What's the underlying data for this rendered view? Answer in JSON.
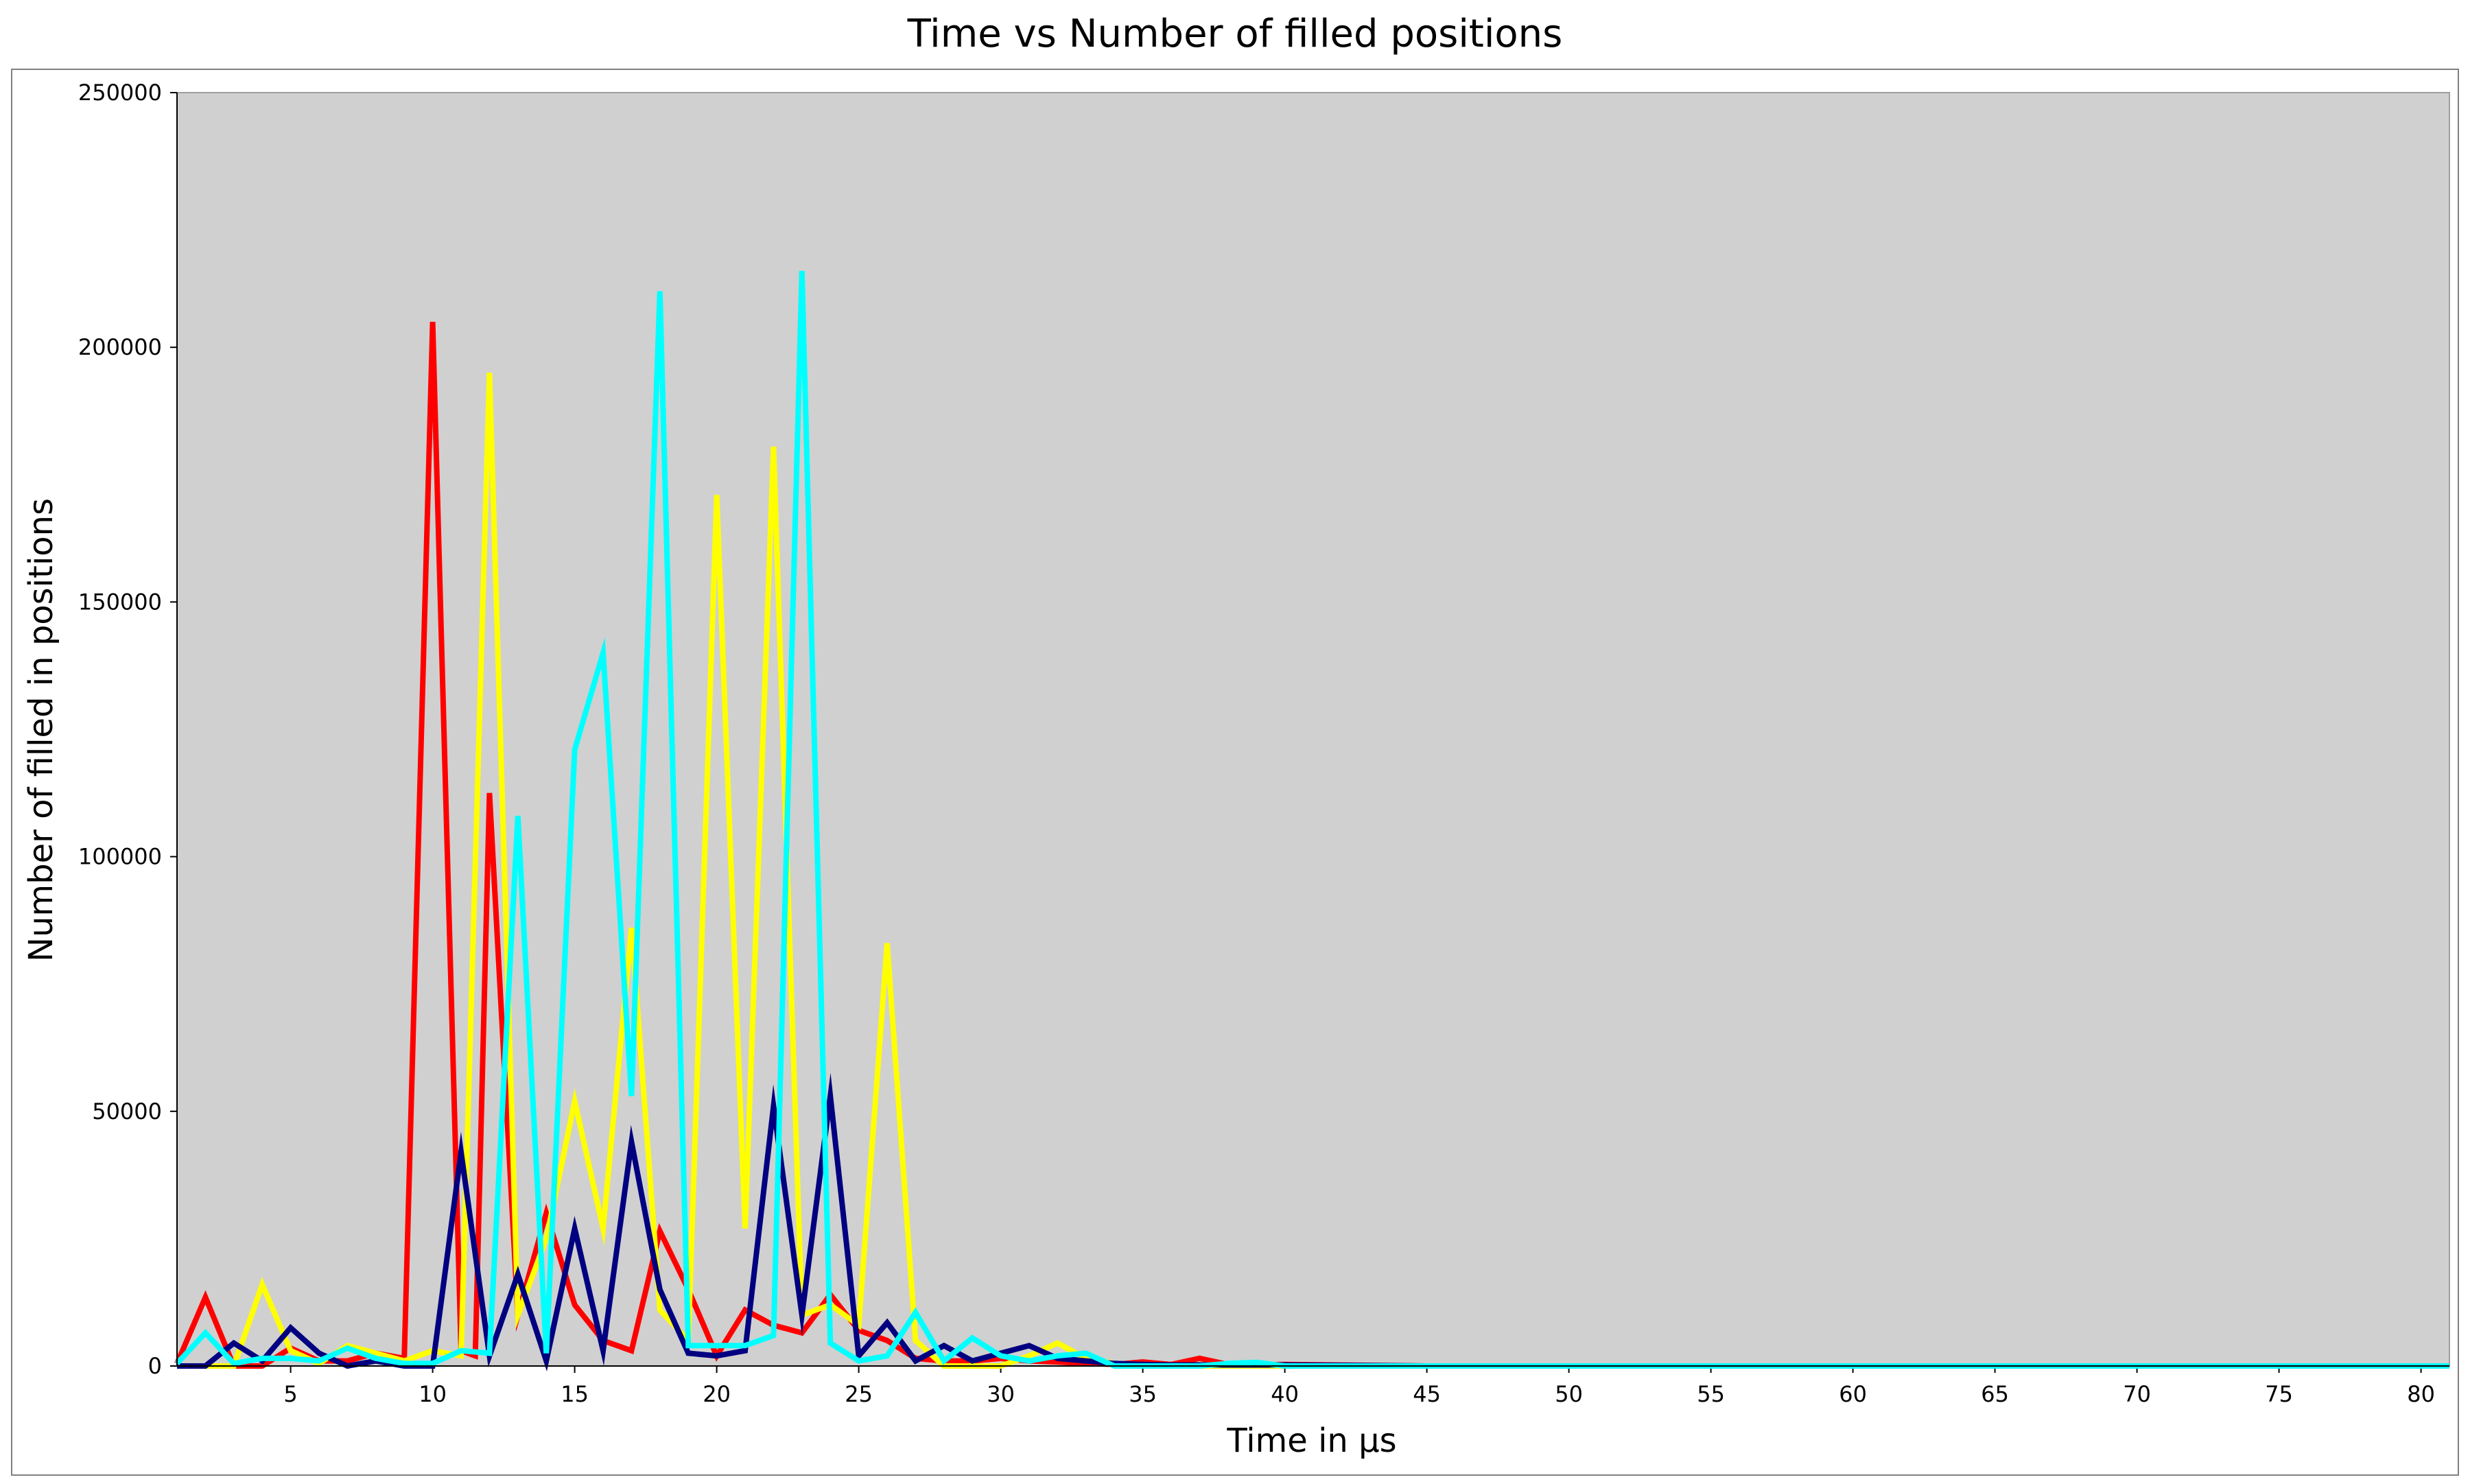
{
  "chart_data": {
    "type": "line",
    "title": "Time vs Number of filled positions",
    "xlabel": "Time in µs",
    "ylabel": "Number of filled in positions",
    "xlim": [
      1,
      81
    ],
    "ylim": [
      0,
      250000
    ],
    "x_ticks": [
      5,
      10,
      15,
      20,
      25,
      30,
      35,
      40,
      45,
      50,
      55,
      60,
      65,
      70,
      75,
      80
    ],
    "y_ticks": [
      0,
      50000,
      100000,
      150000,
      200000,
      250000
    ],
    "background_color": "#d0d0d0",
    "grid": false,
    "legend": "none",
    "series": [
      {
        "color": "#ff0000",
        "x": [
          1,
          2,
          3,
          4,
          5,
          6,
          7,
          8,
          9,
          10,
          11,
          11.5,
          12,
          13,
          14,
          15,
          16,
          17,
          18,
          19,
          20,
          21,
          22,
          23,
          24,
          25,
          26,
          27,
          28,
          29,
          30,
          31,
          32,
          33,
          34,
          35,
          36,
          37,
          38,
          39,
          40,
          45,
          50,
          55,
          60,
          65,
          70,
          75,
          80,
          81
        ],
        "y": [
          500,
          13500,
          0,
          0,
          3500,
          1000,
          1000,
          2500,
          1500,
          205000,
          3000,
          2000,
          112500,
          10000,
          30000,
          12000,
          5000,
          3000,
          26500,
          15000,
          2000,
          11000,
          8000,
          6500,
          14000,
          7000,
          5000,
          1500,
          1000,
          1000,
          1500,
          1000,
          800,
          500,
          300,
          800,
          300,
          1500,
          300,
          200,
          300,
          0,
          0,
          0,
          0,
          0,
          0,
          0,
          0,
          0
        ]
      },
      {
        "color": "#ffff00",
        "x": [
          1,
          2,
          3,
          4,
          5,
          6,
          7,
          8,
          9,
          10,
          11,
          12,
          13,
          14,
          15,
          16,
          17,
          18,
          19,
          20,
          21,
          22,
          23,
          24,
          25,
          26,
          27,
          28,
          29,
          30,
          31,
          32,
          33,
          34,
          35,
          36,
          37,
          38,
          39,
          40,
          45,
          50,
          55,
          60,
          65,
          70,
          75,
          80,
          81
        ],
        "y": [
          0,
          0,
          0,
          16000,
          3000,
          500,
          4000,
          2500,
          1000,
          3000,
          2000,
          195000,
          10000,
          25000,
          52000,
          27000,
          86000,
          11000,
          5000,
          171000,
          27000,
          180500,
          10000,
          12000,
          8000,
          83000,
          5000,
          0,
          0,
          0,
          2000,
          4500,
          1500,
          500,
          0,
          0,
          0,
          0,
          0,
          0,
          0,
          0,
          0,
          0,
          0,
          0,
          0,
          0,
          0
        ]
      },
      {
        "color": "#000080",
        "x": [
          1,
          2,
          3,
          4,
          5,
          6,
          7,
          8,
          9,
          10,
          11,
          12,
          13,
          14,
          15,
          16,
          17,
          18,
          19,
          20,
          21,
          22,
          23,
          24,
          25,
          26,
          27,
          28,
          29,
          30,
          31,
          32,
          33,
          34,
          35,
          36,
          37,
          38,
          39,
          40,
          45,
          50,
          55,
          60,
          65,
          70,
          75,
          80,
          81
        ],
        "y": [
          0,
          0,
          4500,
          1000,
          7500,
          2500,
          0,
          1000,
          0,
          0,
          42000,
          2000,
          18000,
          1000,
          27000,
          3000,
          44000,
          15000,
          2500,
          2000,
          3000,
          51000,
          10000,
          53000,
          2000,
          8500,
          1000,
          4000,
          1000,
          2500,
          4000,
          1500,
          1000,
          500,
          300,
          200,
          200,
          200,
          200,
          200,
          0,
          0,
          0,
          0,
          0,
          0,
          0,
          0,
          0
        ]
      },
      {
        "color": "#00ffff",
        "x": [
          1,
          2,
          3,
          4,
          5,
          6,
          7,
          8,
          9,
          10,
          11,
          12,
          13,
          14,
          15,
          16,
          17,
          18,
          19,
          20,
          21,
          22,
          23,
          24,
          25,
          26,
          27,
          28,
          29,
          30,
          31,
          32,
          33,
          34,
          35,
          36,
          37,
          38,
          39,
          40,
          45,
          50,
          55,
          60,
          65,
          70,
          75,
          80,
          81
        ],
        "y": [
          500,
          6500,
          500,
          1500,
          1500,
          1000,
          3500,
          1500,
          500,
          500,
          3000,
          2500,
          108000,
          2500,
          121000,
          140000,
          53000,
          211000,
          4000,
          4000,
          4000,
          6000,
          215000,
          4500,
          1000,
          2000,
          10500,
          1000,
          5500,
          2000,
          1000,
          2000,
          2500,
          0,
          0,
          0,
          0,
          500,
          700,
          0,
          0,
          0,
          0,
          0,
          0,
          0,
          0,
          0,
          0
        ]
      }
    ]
  }
}
